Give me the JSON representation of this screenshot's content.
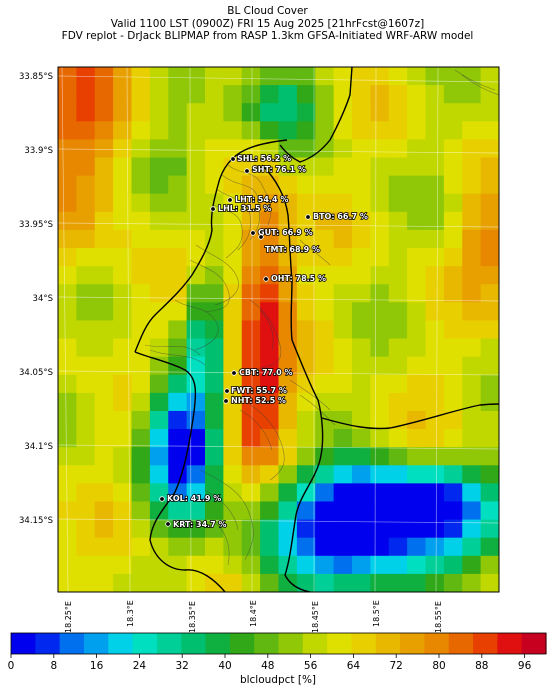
{
  "title": {
    "line1": "BL Cloud Cover",
    "line2": "Valid 1100 LST (0900Z) FRI 15 Aug 2025 [21hrFcst@1607z]",
    "line3": "FDV replot - DrJack BLIPMAP from RASP 1.3km GFSA-Initiated WRF-ARW model"
  },
  "map": {
    "lat_ticks": [
      "33.85°S",
      "33.9°S",
      "33.95°S",
      "34°S",
      "34.05°S",
      "34.1°S",
      "34.15°S"
    ],
    "lon_ticks": [
      "18.25°E",
      "18.3°E",
      "18.35°E",
      "18.4°E",
      "18.45°E",
      "18.5°E",
      "18.55°E"
    ],
    "lat_values": [
      -33.85,
      -33.9,
      -33.95,
      -34.0,
      -34.05,
      -34.1,
      -34.15
    ],
    "lon_values": [
      18.25,
      18.3,
      18.35,
      18.4,
      18.45,
      18.5,
      18.55
    ]
  },
  "stations": [
    {
      "label": "SHL: 56.2 %"
    },
    {
      "label": "SHT: 76.1 %"
    },
    {
      "label": "LHT: 54.4 %"
    },
    {
      "label": "LHL: 31.5 %"
    },
    {
      "label": "BTO: 66.7 %"
    },
    {
      "label": "GUT: 66.9 %"
    },
    {
      "label": "TMT: 68.9 %"
    },
    {
      "label": "OHT: 78.5 %"
    },
    {
      "label": "CBT: 77.0 %"
    },
    {
      "label": "FWT: 55.7 %"
    },
    {
      "label": "NHT: 52.5 %"
    },
    {
      "label": "KOL: 41.9 %"
    },
    {
      "label": "KRT: 34.7 %"
    }
  ],
  "colorbar": {
    "ticks": [
      "0",
      "8",
      "16",
      "24",
      "32",
      "40",
      "48",
      "56",
      "64",
      "72",
      "80",
      "88",
      "96"
    ],
    "label": "blcloudpct [%]",
    "colors": [
      "#0000ee",
      "#0028ee",
      "#0070ee",
      "#00a0ee",
      "#00d0e8",
      "#00e0c0",
      "#00d098",
      "#00c070",
      "#10b040",
      "#30a818",
      "#60b810",
      "#90c808",
      "#c0d800",
      "#e0e000",
      "#e8d000",
      "#e8b800",
      "#e8a000",
      "#e88800",
      "#e86800",
      "#e84000",
      "#e01010",
      "#c80020"
    ],
    "value_range": [
      0,
      100
    ]
  }
}
